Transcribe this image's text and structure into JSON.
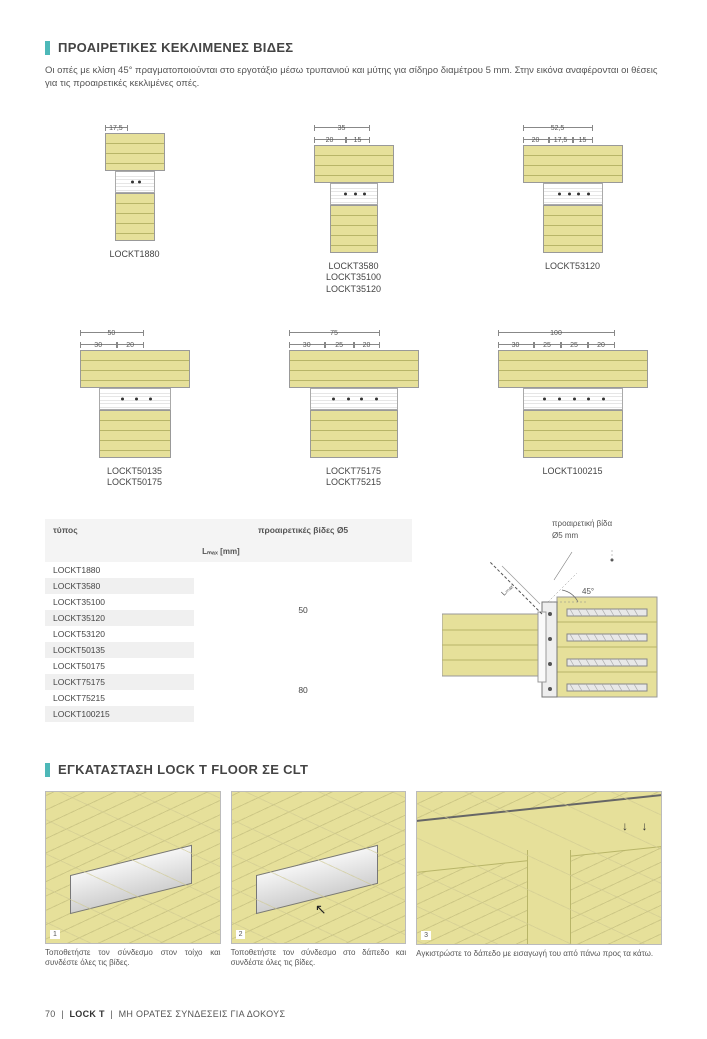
{
  "section1": {
    "title": "ΠΡΟΑΙΡΕΤΙΚΕΣ ΚΕΚΛΙΜΕΝΕΣ ΒΙΔΕΣ",
    "intro": "Οι οπές με κλίση 45° πραγματοποιούνται στο εργοτάξιο μέσω τρυπανιού και μύτης για σίδηρο διαμέτρου 5 mm. Στην εικόνα αναφέρονται οι θέσεις για τις προαιρετικές κεκλιμένες οπές."
  },
  "diagrams": [
    {
      "topW": 60,
      "botW": 40,
      "connW": 40,
      "topDims": [
        {
          "w": "17,5",
          "pct": 38
        }
      ],
      "dots": [
        40,
        60
      ],
      "labels": [
        "LOCKT1880"
      ]
    },
    {
      "topW": 80,
      "botW": 48,
      "connW": 48,
      "topDims": [
        {
          "w": "35",
          "pct": 70,
          "top": true
        },
        {
          "w": "20",
          "pct": 40
        },
        {
          "w": "15",
          "pct": 30,
          "off": 40
        }
      ],
      "dots": [
        30,
        50,
        70
      ],
      "labels": [
        "LOCKT3580",
        "LOCKT35100",
        "LOCKT35120"
      ]
    },
    {
      "topW": 100,
      "botW": 60,
      "connW": 60,
      "topDims": [
        {
          "w": "52,5",
          "pct": 70,
          "top": true
        },
        {
          "w": "20",
          "pct": 26
        },
        {
          "w": "17,5",
          "pct": 24,
          "off": 26
        },
        {
          "w": "15",
          "pct": 20,
          "off": 50
        }
      ],
      "dots": [
        25,
        42,
        58,
        75
      ],
      "labels": [
        "LOCKT53120"
      ]
    },
    {
      "topW": 110,
      "botW": 72,
      "connW": 72,
      "topDims": [
        {
          "w": "50",
          "pct": 58,
          "top": true
        },
        {
          "w": "30",
          "pct": 34
        },
        {
          "w": "20",
          "pct": 24,
          "off": 34
        }
      ],
      "dots": [
        30,
        50,
        70
      ],
      "labels": [
        "LOCKT50135",
        "LOCKT50175"
      ]
    },
    {
      "topW": 130,
      "botW": 88,
      "connW": 88,
      "topDims": [
        {
          "w": "75",
          "pct": 70,
          "top": true
        },
        {
          "w": "30",
          "pct": 28
        },
        {
          "w": "25",
          "pct": 22,
          "off": 28
        },
        {
          "w": "20",
          "pct": 20,
          "off": 50
        }
      ],
      "dots": [
        25,
        42,
        58,
        75
      ],
      "labels": [
        "LOCKT75175",
        "LOCKT75215"
      ]
    },
    {
      "topW": 150,
      "botW": 100,
      "connW": 100,
      "topDims": [
        {
          "w": "100",
          "pct": 78,
          "top": true
        },
        {
          "w": "30",
          "pct": 24
        },
        {
          "w": "25",
          "pct": 18,
          "off": 24
        },
        {
          "w": "25",
          "pct": 18,
          "off": 42
        },
        {
          "w": "20",
          "pct": 18,
          "off": 60
        }
      ],
      "dots": [
        20,
        35,
        50,
        65,
        80
      ],
      "labels": [
        "LOCKT100215"
      ]
    }
  ],
  "table": {
    "colType": "τύπος",
    "colScrews": "προαιρετικές βίδες Ø5",
    "subhead": "Lₘₐₓ [mm]",
    "rows": [
      {
        "name": "LOCKT1880",
        "val": "50",
        "span": 6
      },
      {
        "name": "LOCKT3580"
      },
      {
        "name": "LOCKT35100"
      },
      {
        "name": "LOCKT35120"
      },
      {
        "name": "LOCKT53120"
      },
      {
        "name": "LOCKT50135"
      },
      {
        "name": "LOCKT50175",
        "val": "80",
        "span": 4
      },
      {
        "name": "LOCKT75175"
      },
      {
        "name": "LOCKT75215"
      },
      {
        "name": "LOCKT100215"
      }
    ]
  },
  "crossSection": {
    "note1": "προαιρετική βίδα",
    "note2": "Ø5 mm",
    "angle": "45°",
    "lmax": "Lₘₐₓ"
  },
  "section2": {
    "title": "ΕΓΚΑΤΑΣΤΑΣΗ LOCK T FLOOR ΣΕ CLT"
  },
  "install": [
    {
      "num": "1",
      "caption": "Τοποθετήστε τον σύνδεσμο στον τοίχο και συνδέστε όλες τις βίδες."
    },
    {
      "num": "2",
      "caption": "Τοποθετήστε τον σύνδεσμο στο δάπεδο και συνδέστε όλες τις βίδες."
    },
    {
      "num": "3",
      "caption": "Αγκιστρώστε το δάπεδο με εισαγωγή του από πάνω προς τα κάτω."
    }
  ],
  "footer": {
    "page": "70",
    "product": "LOCK T",
    "desc": "ΜΗ ΟΡΑΤΕΣ ΣΥΝΔΕΣΕΙΣ  ΓΙΑ ΔΟΚΟΥΣ"
  },
  "colors": {
    "wood": "#e6e09a",
    "woodLine": "#b8b568",
    "accent": "#4db8b8"
  }
}
